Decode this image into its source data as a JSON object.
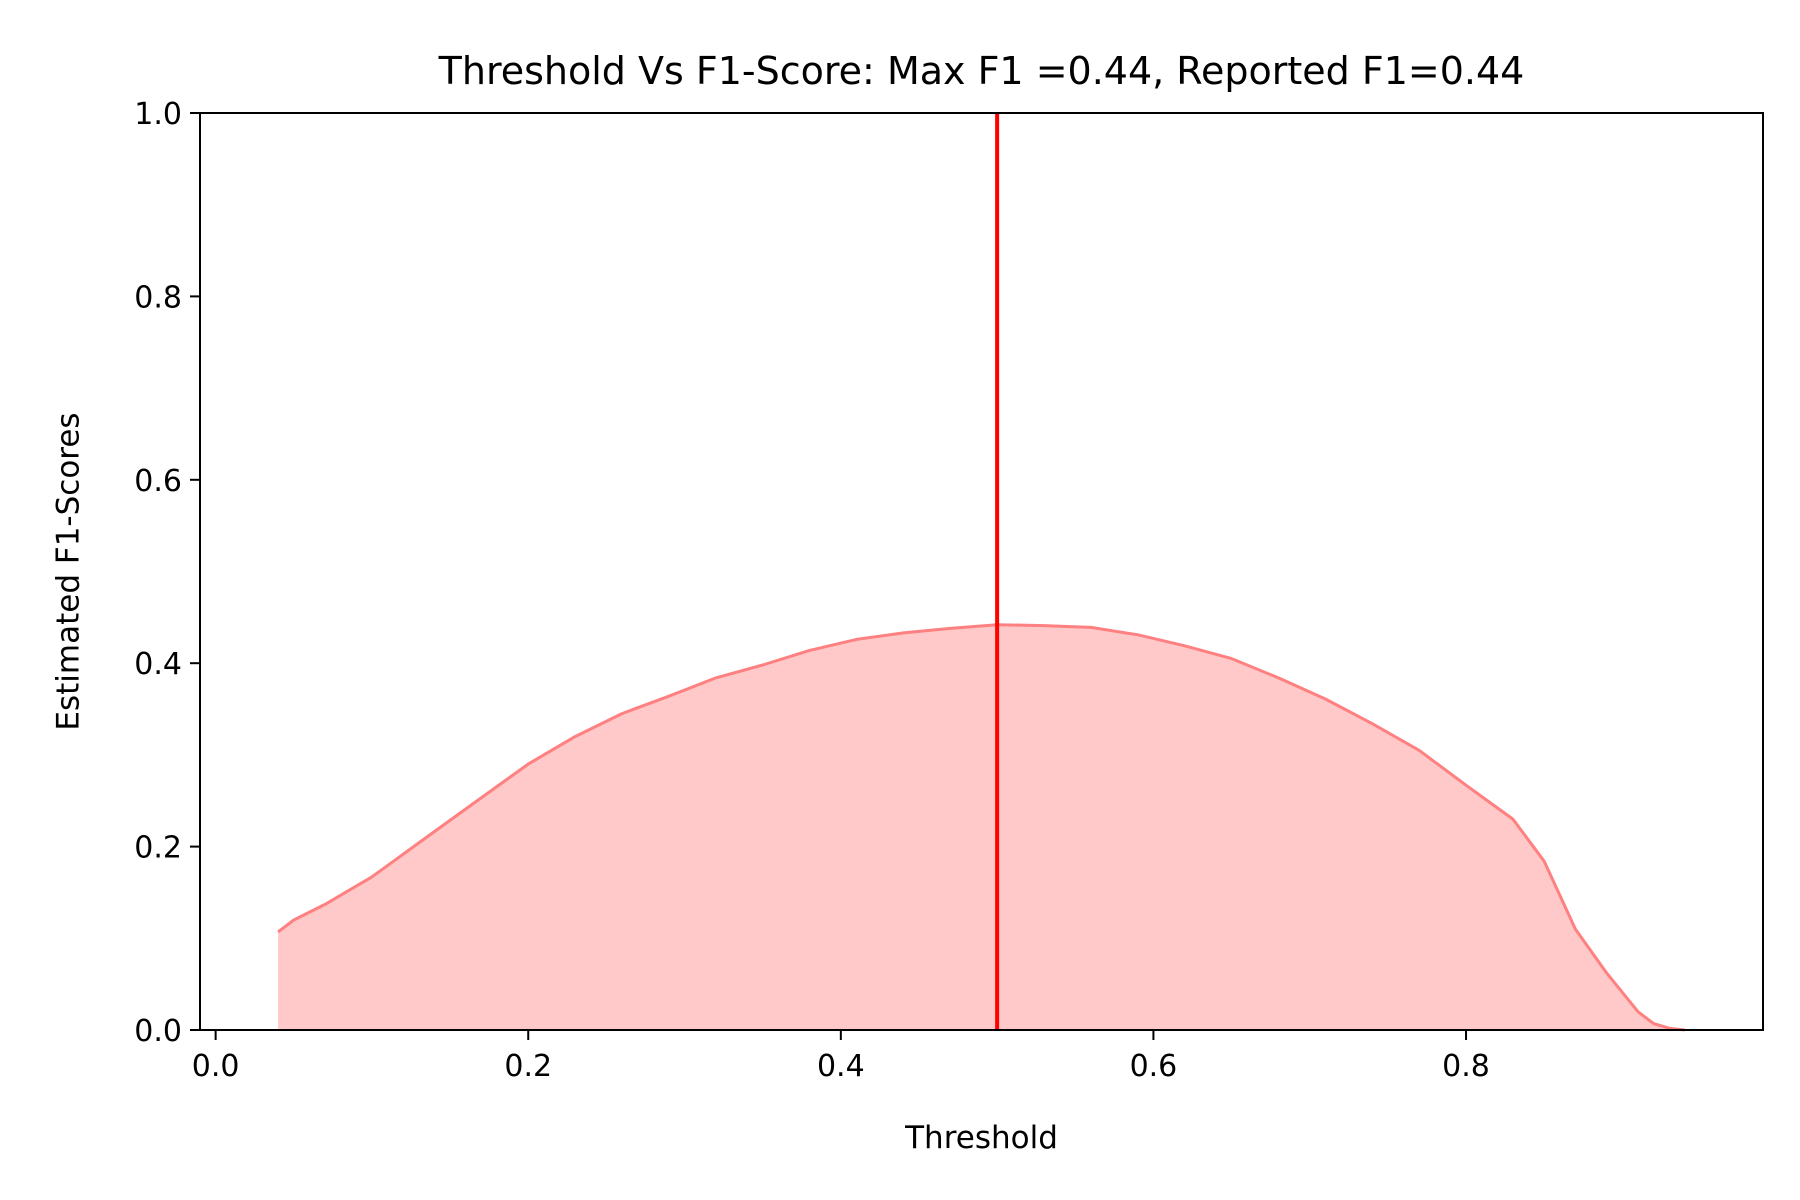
{
  "chart_data": {
    "type": "area",
    "title": "Threshold Vs F1-Score: Max F1 =0.44, Reported F1=0.44",
    "xlabel": "Threshold",
    "ylabel": "Estimated F1-Scores",
    "xlim": [
      -0.01,
      0.99
    ],
    "ylim": [
      0.0,
      1.0
    ],
    "xticks": [
      {
        "value": 0.0,
        "label": "0.0"
      },
      {
        "value": 0.2,
        "label": "0.2"
      },
      {
        "value": 0.4,
        "label": "0.4"
      },
      {
        "value": 0.6,
        "label": "0.6"
      },
      {
        "value": 0.8,
        "label": "0.8"
      }
    ],
    "yticks": [
      {
        "value": 0.0,
        "label": "0.0"
      },
      {
        "value": 0.2,
        "label": "0.2"
      },
      {
        "value": 0.4,
        "label": "0.4"
      },
      {
        "value": 0.6,
        "label": "0.6"
      },
      {
        "value": 0.8,
        "label": "0.8"
      },
      {
        "value": 1.0,
        "label": "1.0"
      }
    ],
    "grid": false,
    "series": [
      {
        "x": [
          0.04,
          0.05,
          0.07,
          0.1,
          0.13,
          0.16,
          0.2,
          0.23,
          0.26,
          0.29,
          0.32,
          0.35,
          0.38,
          0.41,
          0.44,
          0.47,
          0.5,
          0.53,
          0.56,
          0.59,
          0.62,
          0.65,
          0.68,
          0.71,
          0.74,
          0.77,
          0.8,
          0.83,
          0.85,
          0.87,
          0.89,
          0.91,
          0.92,
          0.93,
          0.94
        ],
        "y": [
          0.107,
          0.12,
          0.137,
          0.167,
          0.204,
          0.241,
          0.29,
          0.32,
          0.345,
          0.364,
          0.384,
          0.398,
          0.414,
          0.426,
          0.433,
          0.438,
          0.442,
          0.441,
          0.439,
          0.431,
          0.419,
          0.405,
          0.384,
          0.361,
          0.334,
          0.305,
          0.267,
          0.23,
          0.184,
          0.11,
          0.062,
          0.02,
          0.007,
          0.002,
          0.0
        ],
        "color": "#ff8080",
        "fill": "#ffc9c9"
      }
    ],
    "vline": {
      "x": 0.5,
      "color": "#ff0000"
    }
  }
}
